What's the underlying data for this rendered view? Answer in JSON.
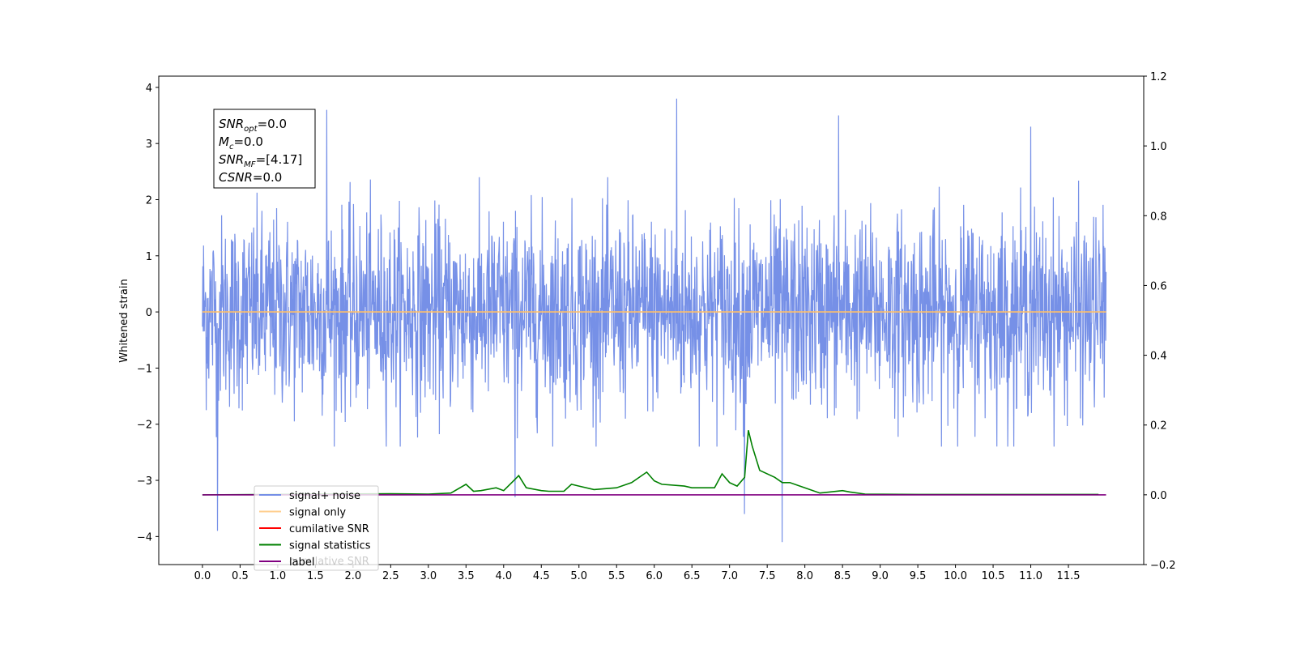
{
  "chart_data": {
    "type": "line",
    "title": "",
    "xlabel": "",
    "ylabel": "Whitened strain",
    "xlim": [
      -0.58,
      12.5
    ],
    "ylim": [
      -4.5,
      4.2
    ],
    "y2lim": [
      -0.2,
      1.2
    ],
    "x_ticks": [
      0.0,
      0.5,
      1.0,
      1.5,
      2.0,
      2.5,
      3.0,
      3.5,
      4.0,
      4.5,
      5.0,
      5.5,
      6.0,
      6.5,
      7.0,
      7.5,
      8.0,
      8.5,
      9.0,
      9.5,
      10.0,
      10.5,
      11.0,
      11.5
    ],
    "x_tick_labels": [
      "0.0",
      "0.5",
      "1.0",
      "1.5",
      "2.0",
      "2.5",
      "3.0",
      "3.5",
      "4.0",
      "4.5",
      "5.0",
      "5.5",
      "6.0",
      "6.5",
      "7.0",
      "7.5",
      "8.0",
      "8.5",
      "9.0",
      "9.5",
      "10.0",
      "10.5",
      "11.0",
      "11.5"
    ],
    "y_ticks": [
      -4,
      -3,
      -2,
      -1,
      0,
      1,
      2,
      3,
      4
    ],
    "y_tick_labels": [
      "−4",
      "−3",
      "−2",
      "−1",
      "0",
      "1",
      "2",
      "3",
      "4"
    ],
    "y2_ticks": [
      -0.2,
      0.0,
      0.2,
      0.4,
      0.6,
      0.8,
      1.0,
      1.2
    ],
    "y2_tick_labels": [
      "−0.2",
      "0.0",
      "0.2",
      "0.4",
      "0.6",
      "0.8",
      "1.0",
      "1.2"
    ],
    "grid": false,
    "legend_position": "lower-left",
    "info_box": {
      "lines": [
        {
          "base": "SNR",
          "sub": "opt",
          "value": "=0.0"
        },
        {
          "base": "M",
          "sub": "c",
          "value": "=0.0"
        },
        {
          "base": "SNR",
          "sub": "MF",
          "value": "=[4.17]"
        },
        {
          "base": "CSNR",
          "sub": "",
          "value": "=0.0"
        }
      ]
    },
    "series": [
      {
        "name": "signal+ noise",
        "axis": "left",
        "color": "#6f8ae6",
        "x_range": [
          0.0,
          12.0
        ],
        "approx_envelope": [
          -2.0,
          2.2
        ],
        "spikes": [
          {
            "x": 0.2,
            "y": -3.9
          },
          {
            "x": 1.65,
            "y": 3.6
          },
          {
            "x": 4.15,
            "y": -3.3
          },
          {
            "x": 6.3,
            "y": 3.8
          },
          {
            "x": 7.2,
            "y": -3.6
          },
          {
            "x": 7.7,
            "y": -4.1
          },
          {
            "x": 8.45,
            "y": 3.5
          },
          {
            "x": 11.0,
            "y": 3.3
          }
        ]
      },
      {
        "name": "signal only",
        "axis": "left",
        "color": "#ffbf69",
        "x": [
          0.0,
          12.0
        ],
        "y": [
          0.0,
          0.0
        ]
      },
      {
        "name": "cumilative SNR",
        "axis": "right",
        "color": "#ff0000",
        "x": [],
        "y": []
      },
      {
        "name": "signal statistics",
        "axis": "right",
        "color": "#008000",
        "x": [
          0.0,
          2.5,
          3.0,
          3.3,
          3.5,
          3.6,
          3.7,
          3.9,
          4.0,
          4.2,
          4.3,
          4.5,
          4.6,
          4.8,
          4.9,
          5.0,
          5.2,
          5.5,
          5.7,
          5.9,
          6.0,
          6.1,
          6.4,
          6.5,
          6.8,
          6.9,
          7.0,
          7.1,
          7.2,
          7.25,
          7.3,
          7.4,
          7.6,
          7.7,
          7.8,
          8.0,
          8.2,
          8.5,
          8.6,
          8.8,
          9.5,
          10.0,
          11.0,
          11.9
        ],
        "y": [
          0.0,
          0.003,
          0.002,
          0.005,
          0.03,
          0.01,
          0.012,
          0.02,
          0.012,
          0.055,
          0.02,
          0.012,
          0.01,
          0.01,
          0.03,
          0.025,
          0.015,
          0.02,
          0.035,
          0.065,
          0.04,
          0.03,
          0.025,
          0.02,
          0.02,
          0.06,
          0.035,
          0.025,
          0.05,
          0.185,
          0.14,
          0.07,
          0.05,
          0.035,
          0.035,
          0.02,
          0.005,
          0.012,
          0.008,
          0.002,
          0.001,
          0.001,
          0.001,
          0.001
        ]
      },
      {
        "name": "label",
        "axis": "right",
        "color": "#800080",
        "x": [
          0.0,
          12.0
        ],
        "y": [
          0.0,
          0.0
        ]
      }
    ],
    "legend_overlay_text": "cumilative SNR"
  }
}
